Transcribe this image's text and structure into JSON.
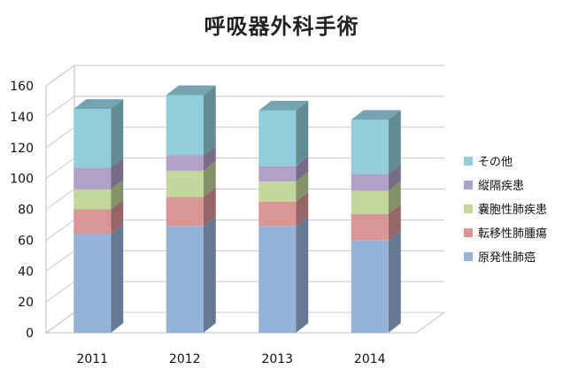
{
  "chart_data": {
    "type": "bar",
    "stacked": true,
    "three_d": true,
    "title": "呼吸器外科手術",
    "categories": [
      "2011",
      "2012",
      "2013",
      "2014"
    ],
    "ylim": [
      0,
      160
    ],
    "yticks": [
      0,
      20,
      40,
      60,
      80,
      100,
      120,
      140,
      160
    ],
    "grid": true,
    "legend_position": "right",
    "series": [
      {
        "name": "原発性肺癌",
        "color": "#95B3D7",
        "values": [
          64,
          69,
          69,
          60
        ]
      },
      {
        "name": "転移性肺腫瘍",
        "color": "#DA9694",
        "values": [
          16,
          19,
          16,
          17
        ]
      },
      {
        "name": "嚢胞性肺疾患",
        "color": "#C4D79B",
        "values": [
          13,
          17,
          13,
          15
        ]
      },
      {
        "name": "縦隔疾患",
        "color": "#B1A0C7",
        "values": [
          14,
          10,
          10,
          11
        ]
      },
      {
        "name": "その他",
        "color": "#92CDDC",
        "values": [
          38,
          39,
          36,
          35
        ]
      }
    ]
  }
}
